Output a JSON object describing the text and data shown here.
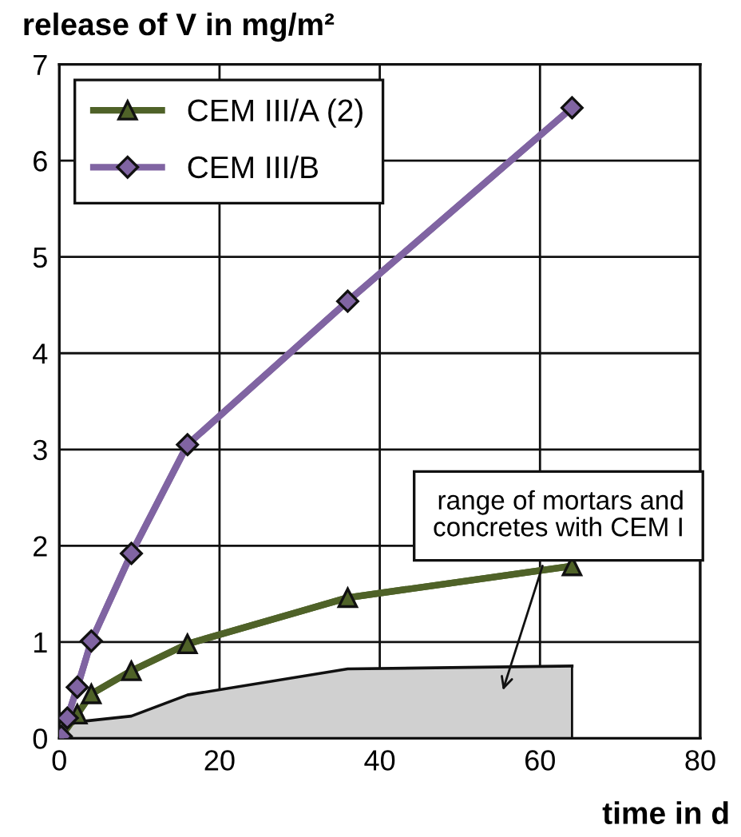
{
  "chart_data": {
    "type": "line",
    "ylabel": "release of V in mg/m²",
    "xlabel": "time in d",
    "series": [
      {
        "name": null,
        "type": "area",
        "color": "#d0d0d0",
        "x": [
          0.25,
          2.25,
          9,
          16,
          36,
          64
        ],
        "values": [
          0.1,
          0.17,
          0.23,
          0.45,
          0.72,
          0.75
        ]
      },
      {
        "name": "CEM III/A (2)",
        "color": "#4f6228",
        "marker": "triangle",
        "x": [
          0.25,
          1,
          2.25,
          4,
          9,
          16,
          36,
          64
        ],
        "values": [
          0.02,
          null,
          0.25,
          0.46,
          0.7,
          0.98,
          1.46,
          1.79
        ]
      },
      {
        "name": "CEM III/B",
        "color": "#8064a2",
        "marker": "diamond",
        "x": [
          0.25,
          1,
          2.25,
          4,
          9,
          16,
          36,
          64
        ],
        "values": [
          0.02,
          0.21,
          0.53,
          1.01,
          1.92,
          3.05,
          4.54,
          6.55
        ]
      }
    ],
    "xlim": [
      0,
      80
    ],
    "xticks": [
      0,
      20,
      40,
      60,
      80
    ],
    "ylim": [
      0,
      7
    ],
    "yticks": [
      0,
      1,
      2,
      3,
      4,
      5,
      6,
      7
    ],
    "grid": true,
    "legend": "top left",
    "annotations": [
      "range of mortars and\nconcretes with CEM I"
    ]
  }
}
